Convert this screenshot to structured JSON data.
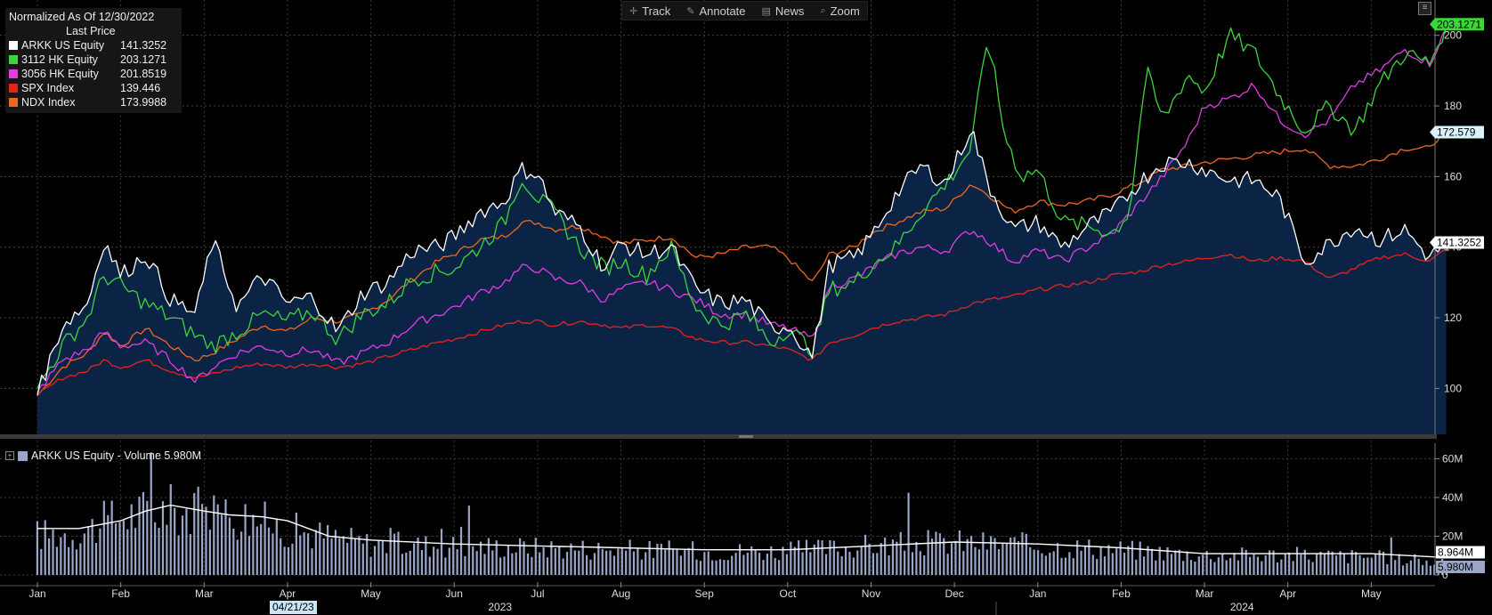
{
  "toolbar": {
    "track": "Track",
    "annotate": "Annotate",
    "news": "News",
    "zoom": "Zoom",
    "track_icon": "crosshair-icon",
    "annotate_icon": "pencil-icon",
    "news_icon": "newspaper-icon",
    "zoom_icon": "magnifier-icon"
  },
  "legend": {
    "title": "Normalized As Of 12/30/2022",
    "subtitle": "Last Price",
    "items": [
      {
        "name": "ARKK US Equity",
        "value": "141.3252",
        "color": "#ffffff"
      },
      {
        "name": "3112 HK Equity",
        "value": "203.1271",
        "color": "#3cd63c"
      },
      {
        "name": "3056 HK Equity",
        "value": "201.8519",
        "color": "#e23ce2"
      },
      {
        "name": "SPX Index",
        "value": "139.446",
        "color": "#e8231c"
      },
      {
        "name": "NDX Index",
        "value": "173.9988",
        "color": "#f0661e"
      }
    ]
  },
  "volume_legend": {
    "label": "ARKK US Equity - Volume 5.980M",
    "color": "#9aa6c8"
  },
  "date_tag": "04/21/23",
  "chart_data": [
    {
      "type": "line",
      "title": "",
      "xlabel": "",
      "ylabel": "",
      "ylim": [
        87,
        210
      ],
      "yticks": [
        100,
        120,
        140,
        160,
        180,
        200
      ],
      "grid": true,
      "legend_position": "top-left",
      "x_labels": [
        "Jan",
        "Feb",
        "Mar",
        "Apr",
        "May",
        "Jun",
        "Jul",
        "Aug",
        "Sep",
        "Oct",
        "Nov",
        "Dec",
        "Jan",
        "Feb",
        "Mar",
        "Apr",
        "May"
      ],
      "x_label_pos": [
        0,
        1,
        2,
        3,
        4,
        5,
        6,
        7,
        8,
        9,
        10,
        11,
        12,
        13,
        14,
        15,
        16
      ],
      "year_labels": [
        {
          "label": "2023",
          "pos": 5.55
        },
        {
          "label": "2024",
          "pos": 14.45
        }
      ],
      "x_range": [
        0,
        17
      ],
      "last_value_tags": [
        {
          "label": "203.1271",
          "value": 203.13,
          "color": "#3cd63c",
          "text_color": "#000000"
        },
        {
          "label": "172.579",
          "value": 172.58,
          "color": "#d9f2fb",
          "text_color": "#000000"
        },
        {
          "label": "141.3252",
          "value": 141.33,
          "color": "#ffffff",
          "text_color": "#000000"
        }
      ],
      "series": [
        {
          "name": "ARKK US Equity",
          "color": "#ffffff",
          "area_fill": "#0b2446",
          "x": [
            0,
            0.3,
            0.6,
            0.8,
            1.0,
            1.3,
            1.6,
            1.9,
            2.1,
            2.4,
            2.7,
            3.0,
            3.3,
            3.6,
            3.9,
            4.2,
            4.5,
            4.8,
            5.0,
            5.3,
            5.6,
            5.8,
            6.0,
            6.2,
            6.5,
            6.8,
            7.0,
            7.3,
            7.6,
            7.9,
            8.2,
            8.5,
            8.8,
            9.0,
            9.3,
            9.5,
            9.8,
            10.0,
            10.3,
            10.6,
            10.9,
            11.2,
            11.4,
            11.7,
            12.0,
            12.3,
            12.6,
            12.9,
            13.2,
            13.5,
            13.8,
            14.0,
            14.3,
            14.6,
            14.9,
            15.2,
            15.5,
            15.8,
            16.1,
            16.4,
            16.7,
            16.9
          ],
          "values": [
            98,
            118,
            124,
            142,
            132,
            138,
            125,
            121,
            142,
            123,
            132,
            124,
            126,
            116,
            127,
            130,
            139,
            140,
            143,
            150,
            153,
            162,
            161,
            150,
            146,
            134,
            141,
            138,
            140,
            128,
            124,
            125,
            117,
            118,
            109,
            135,
            137,
            143,
            155,
            163,
            158,
            174,
            158,
            145,
            147,
            140,
            146,
            150,
            158,
            164,
            164,
            162,
            159,
            159,
            154,
            136,
            141,
            146,
            142,
            145,
            137,
            141.33
          ]
        },
        {
          "name": "3112 HK Equity",
          "color": "#3cd63c",
          "x": [
            0,
            0.3,
            0.6,
            0.8,
            1.0,
            1.3,
            1.6,
            1.9,
            2.1,
            2.4,
            2.7,
            3.0,
            3.3,
            3.6,
            3.9,
            4.2,
            4.5,
            4.8,
            5.0,
            5.3,
            5.6,
            5.8,
            6.0,
            6.2,
            6.5,
            6.8,
            7.0,
            7.3,
            7.6,
            7.9,
            8.2,
            8.5,
            8.8,
            9.0,
            9.3,
            9.5,
            9.8,
            10.0,
            10.3,
            10.6,
            10.9,
            11.2,
            11.4,
            11.6,
            11.8,
            12.0,
            12.3,
            12.6,
            12.9,
            13.1,
            13.3,
            13.5,
            13.8,
            14.0,
            14.3,
            14.6,
            14.9,
            15.2,
            15.5,
            15.8,
            16.1,
            16.4,
            16.7,
            16.9
          ],
          "values": [
            100,
            112,
            120,
            132,
            129,
            124,
            120,
            115,
            112,
            116,
            121,
            119,
            122,
            114,
            121,
            124,
            131,
            133,
            134,
            140,
            147,
            160,
            154,
            150,
            140,
            134,
            136,
            132,
            140,
            123,
            118,
            121,
            113,
            117,
            111,
            128,
            130,
            135,
            140,
            150,
            158,
            168,
            200,
            172,
            160,
            162,
            147,
            146,
            144,
            150,
            190,
            176,
            189,
            184,
            200,
            195,
            183,
            173,
            180,
            173,
            186,
            195,
            192,
            203.13
          ]
        },
        {
          "name": "3056 HK Equity",
          "color": "#e23ce2",
          "x": [
            0,
            0.3,
            0.6,
            0.8,
            1.0,
            1.3,
            1.6,
            1.9,
            2.1,
            2.4,
            2.7,
            3.0,
            3.3,
            3.6,
            3.9,
            4.2,
            4.5,
            4.8,
            5.0,
            5.3,
            5.6,
            5.8,
            6.0,
            6.2,
            6.5,
            6.8,
            7.0,
            7.3,
            7.6,
            7.9,
            8.2,
            8.5,
            8.8,
            9.0,
            9.3,
            9.5,
            9.8,
            10.0,
            10.3,
            10.6,
            10.9,
            11.2,
            11.4,
            11.7,
            12.0,
            12.3,
            12.6,
            12.9,
            13.2,
            13.5,
            13.8,
            14.0,
            14.3,
            14.6,
            14.9,
            15.2,
            15.5,
            15.8,
            16.1,
            16.4,
            16.7,
            16.9
          ],
          "values": [
            99,
            108,
            111,
            116,
            112,
            113,
            108,
            102,
            106,
            110,
            112,
            110,
            111,
            107,
            110,
            113,
            118,
            121,
            123,
            127,
            130,
            134,
            134,
            131,
            130,
            125,
            128,
            130,
            128,
            125,
            121,
            121,
            118,
            117,
            114,
            129,
            131,
            134,
            138,
            140,
            139,
            145,
            142,
            136,
            139,
            136,
            140,
            144,
            152,
            160,
            170,
            180,
            182,
            186,
            176,
            172,
            176,
            186,
            190,
            196,
            192,
            201.85
          ]
        },
        {
          "name": "SPX Index",
          "color": "#e8231c",
          "x": [
            0,
            0.3,
            0.6,
            0.8,
            1.0,
            1.3,
            1.6,
            1.9,
            2.1,
            2.4,
            2.7,
            3.0,
            3.3,
            3.6,
            3.9,
            4.2,
            4.5,
            4.8,
            5.0,
            5.3,
            5.6,
            5.8,
            6.0,
            6.2,
            6.5,
            6.8,
            7.0,
            7.3,
            7.6,
            7.9,
            8.2,
            8.5,
            8.8,
            9.0,
            9.3,
            9.5,
            9.8,
            10.0,
            10.3,
            10.6,
            10.9,
            11.2,
            11.4,
            11.7,
            12.0,
            12.3,
            12.6,
            12.9,
            13.2,
            13.5,
            13.8,
            14.0,
            14.3,
            14.6,
            14.9,
            15.2,
            15.5,
            15.8,
            16.1,
            16.4,
            16.7,
            16.9
          ],
          "values": [
            98,
            103,
            105,
            108,
            106,
            108,
            105,
            103,
            104,
            106,
            107,
            106,
            107,
            106,
            107,
            109,
            111,
            113,
            114,
            116,
            118,
            119,
            119,
            118,
            119,
            118,
            117,
            118,
            117,
            114,
            113,
            113,
            112,
            111,
            108,
            113,
            115,
            117,
            119,
            120,
            121,
            124,
            125,
            126,
            128,
            129,
            130,
            132,
            133,
            135,
            136,
            137,
            138,
            136,
            137,
            136,
            131,
            134,
            137,
            138,
            136,
            139.45
          ]
        },
        {
          "name": "NDX Index",
          "color": "#f0661e",
          "x": [
            0,
            0.3,
            0.6,
            0.8,
            1.0,
            1.3,
            1.6,
            1.9,
            2.1,
            2.4,
            2.7,
            3.0,
            3.3,
            3.6,
            3.9,
            4.2,
            4.5,
            4.8,
            5.0,
            5.3,
            5.6,
            5.8,
            6.0,
            6.2,
            6.5,
            6.8,
            7.0,
            7.3,
            7.6,
            7.9,
            8.2,
            8.5,
            8.8,
            9.0,
            9.3,
            9.5,
            9.8,
            10.0,
            10.3,
            10.6,
            10.9,
            11.2,
            11.4,
            11.7,
            12.0,
            12.3,
            12.6,
            12.9,
            13.2,
            13.5,
            13.8,
            14.0,
            14.3,
            14.6,
            14.9,
            15.2,
            15.5,
            15.8,
            16.1,
            16.4,
            16.7,
            16.9
          ],
          "values": [
            98,
            106,
            110,
            116,
            112,
            117,
            112,
            108,
            110,
            114,
            118,
            116,
            120,
            119,
            121,
            125,
            131,
            136,
            138,
            142,
            143,
            147,
            147,
            145,
            146,
            143,
            141,
            142,
            143,
            137,
            138,
            140,
            140,
            137,
            130,
            138,
            140,
            144,
            147,
            150,
            151,
            158,
            155,
            150,
            153,
            152,
            153,
            155,
            158,
            162,
            163,
            164,
            165,
            166,
            167,
            168,
            163,
            163,
            165,
            168,
            168,
            174.0
          ]
        }
      ]
    },
    {
      "type": "bar",
      "title": "ARKK US Equity - Volume 5.980M",
      "ylim": [
        0,
        68
      ],
      "yticks": [
        0,
        20,
        40,
        60
      ],
      "ytick_labels": [
        "0",
        "20M",
        "40M",
        "60M"
      ],
      "y_unit": "M",
      "grid": true,
      "last_value_tags": [
        {
          "label": "5.980M",
          "value": 5.98,
          "color": "#9aa6c8",
          "text_color": "#000000"
        },
        {
          "label": "8.964M",
          "value": 8.96,
          "color": "#ffffff",
          "text_color": "#000000"
        }
      ],
      "bar_color": "#9aa6c8",
      "ma_color": "#ffffff",
      "ma_x": [
        0,
        0.5,
        1.0,
        1.3,
        1.6,
        2.0,
        2.3,
        2.7,
        3.0,
        3.5,
        4.0,
        5.0,
        6.0,
        7.0,
        8.0,
        9.0,
        10.0,
        11.0,
        12.0,
        13.0,
        14.0,
        15.0,
        16.0,
        16.9
      ],
      "ma_values": [
        24,
        24,
        28,
        33,
        36,
        33,
        31,
        30,
        28,
        20,
        18,
        16,
        15,
        14,
        13,
        13,
        15,
        17,
        16,
        14,
        11,
        11,
        11,
        9
      ],
      "volume_profile_x": [
        0,
        0.5,
        1.0,
        1.5,
        2.0,
        2.5,
        3.0,
        4.0,
        5.0,
        6.0,
        7.0,
        8.0,
        9.0,
        10.0,
        11.0,
        12.0,
        13.0,
        14.0,
        15.0,
        16.0,
        16.9
      ],
      "volume_profile": [
        22,
        23,
        32,
        36,
        34,
        32,
        25,
        17,
        16,
        15,
        14,
        13,
        13,
        16,
        18,
        16,
        14,
        11,
        11,
        10,
        6
      ]
    }
  ]
}
